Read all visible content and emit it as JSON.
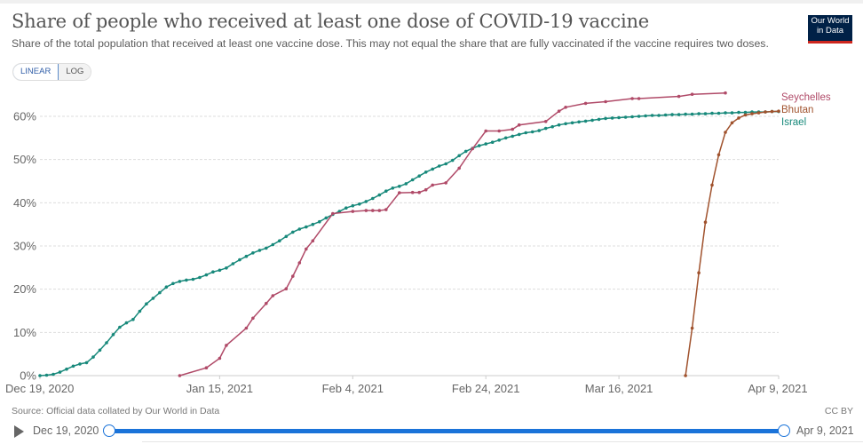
{
  "header": {
    "title": "Share of people who received at least one dose of COVID-19 vaccine",
    "subtitle": "Share of the total population that received at least one vaccine dose. This may not equal the share that are fully vaccinated if the vaccine requires two doses.",
    "logo_line1": "Our World",
    "logo_line2": "in Data"
  },
  "controls": {
    "linear_label": "LINEAR",
    "log_label": "LOG",
    "selected_scale": "LINEAR"
  },
  "footer": {
    "source": "Source: Official data collated by Our World in Data",
    "license": "CC BY"
  },
  "timeline": {
    "start_label": "Dec 19, 2020",
    "end_label": "Apr 9, 2021",
    "accent_color": "#1a73d9"
  },
  "chart_data": {
    "type": "line",
    "title": "Share of people who received at least one dose of COVID-19 vaccine",
    "xlabel": "",
    "ylabel": "",
    "x_unit": "days since Dec 19, 2020",
    "x_range": [
      0,
      111
    ],
    "x_ticks": [
      {
        "day": 0,
        "label": "Dec 19, 2020"
      },
      {
        "day": 27,
        "label": "Jan 15, 2021"
      },
      {
        "day": 47,
        "label": "Feb 4, 2021"
      },
      {
        "day": 67,
        "label": "Feb 24, 2021"
      },
      {
        "day": 87,
        "label": "Mar 16, 2021"
      },
      {
        "day": 111,
        "label": "Apr 9, 2021"
      }
    ],
    "ylim": [
      0,
      65
    ],
    "y_ticks": [
      {
        "value": 0,
        "label": "0%"
      },
      {
        "value": 10,
        "label": "10%"
      },
      {
        "value": 20,
        "label": "20%"
      },
      {
        "value": 30,
        "label": "30%"
      },
      {
        "value": 40,
        "label": "40%"
      },
      {
        "value": 50,
        "label": "50%"
      },
      {
        "value": 60,
        "label": "60%"
      }
    ],
    "grid": "horizontal-dashed",
    "legend": "right-inline",
    "series": [
      {
        "name": "Seychelles",
        "color": "#b04a68",
        "points": [
          [
            21,
            0.0
          ],
          [
            25,
            1.8
          ],
          [
            27,
            4.0
          ],
          [
            28,
            7.0
          ],
          [
            31,
            11.0
          ],
          [
            32,
            13.3
          ],
          [
            34,
            16.7
          ],
          [
            35,
            18.5
          ],
          [
            37,
            20.1
          ],
          [
            38,
            23.0
          ],
          [
            39,
            26.1
          ],
          [
            40,
            29.3
          ],
          [
            41,
            31.2
          ],
          [
            44,
            37.5
          ],
          [
            47,
            38.0
          ],
          [
            49,
            38.2
          ],
          [
            50,
            38.2
          ],
          [
            51,
            38.2
          ],
          [
            52,
            38.4
          ],
          [
            54,
            42.3
          ],
          [
            56,
            42.4
          ],
          [
            57,
            42.4
          ],
          [
            58,
            43.0
          ],
          [
            59,
            44.1
          ],
          [
            61,
            44.6
          ],
          [
            63,
            48.0
          ],
          [
            65,
            52.5
          ],
          [
            67,
            56.6
          ],
          [
            69,
            56.6
          ],
          [
            71,
            57.0
          ],
          [
            72,
            58.0
          ],
          [
            76,
            58.8
          ],
          [
            78,
            61.2
          ],
          [
            79,
            62.1
          ],
          [
            82,
            63.0
          ],
          [
            85,
            63.4
          ],
          [
            89,
            64.1
          ],
          [
            90,
            64.1
          ],
          [
            96,
            64.6
          ],
          [
            98,
            65.1
          ],
          [
            103,
            65.4
          ]
        ]
      },
      {
        "name": "Bhutan",
        "color": "#a0522d",
        "points": [
          [
            97,
            0.0
          ],
          [
            98,
            11.0
          ],
          [
            99,
            23.8
          ],
          [
            100,
            35.5
          ],
          [
            101,
            44.1
          ],
          [
            102,
            51.1
          ],
          [
            103,
            56.3
          ],
          [
            104,
            58.5
          ],
          [
            105,
            59.6
          ],
          [
            106,
            60.3
          ],
          [
            107,
            60.6
          ],
          [
            108,
            60.8
          ],
          [
            109,
            61.0
          ],
          [
            110,
            61.1
          ],
          [
            111,
            61.2
          ]
        ]
      },
      {
        "name": "Israel",
        "color": "#18897b",
        "points": [
          [
            0,
            0.0
          ],
          [
            1,
            0.1
          ],
          [
            2,
            0.3
          ],
          [
            3,
            0.8
          ],
          [
            4,
            1.5
          ],
          [
            5,
            2.2
          ],
          [
            6,
            2.7
          ],
          [
            7,
            3.0
          ],
          [
            8,
            4.3
          ],
          [
            9,
            5.9
          ],
          [
            10,
            7.6
          ],
          [
            11,
            9.5
          ],
          [
            12,
            11.2
          ],
          [
            13,
            12.2
          ],
          [
            14,
            13.0
          ],
          [
            15,
            14.9
          ],
          [
            16,
            16.6
          ],
          [
            17,
            17.9
          ],
          [
            18,
            19.2
          ],
          [
            19,
            20.5
          ],
          [
            20,
            21.3
          ],
          [
            21,
            21.8
          ],
          [
            22,
            22.1
          ],
          [
            23,
            22.3
          ],
          [
            24,
            22.7
          ],
          [
            25,
            23.3
          ],
          [
            26,
            24.0
          ],
          [
            27,
            24.4
          ],
          [
            28,
            24.9
          ],
          [
            29,
            25.9
          ],
          [
            30,
            26.8
          ],
          [
            31,
            27.6
          ],
          [
            32,
            28.4
          ],
          [
            33,
            29.0
          ],
          [
            34,
            29.5
          ],
          [
            35,
            30.3
          ],
          [
            36,
            31.2
          ],
          [
            37,
            32.2
          ],
          [
            38,
            33.2
          ],
          [
            39,
            33.9
          ],
          [
            40,
            34.4
          ],
          [
            41,
            35.0
          ],
          [
            42,
            35.6
          ],
          [
            43,
            36.5
          ],
          [
            44,
            37.3
          ],
          [
            45,
            38.0
          ],
          [
            46,
            38.8
          ],
          [
            47,
            39.3
          ],
          [
            48,
            39.7
          ],
          [
            49,
            40.3
          ],
          [
            50,
            41.0
          ],
          [
            51,
            41.8
          ],
          [
            52,
            42.7
          ],
          [
            53,
            43.4
          ],
          [
            54,
            43.8
          ],
          [
            55,
            44.4
          ],
          [
            56,
            45.3
          ],
          [
            57,
            46.2
          ],
          [
            58,
            47.1
          ],
          [
            59,
            47.8
          ],
          [
            60,
            48.5
          ],
          [
            61,
            49.0
          ],
          [
            62,
            49.8
          ],
          [
            63,
            50.9
          ],
          [
            64,
            51.9
          ],
          [
            65,
            52.6
          ],
          [
            66,
            53.2
          ],
          [
            67,
            53.6
          ],
          [
            68,
            54.0
          ],
          [
            69,
            54.5
          ],
          [
            70,
            55.0
          ],
          [
            71,
            55.4
          ],
          [
            72,
            55.8
          ],
          [
            73,
            56.2
          ],
          [
            74,
            56.4
          ],
          [
            75,
            56.7
          ],
          [
            76,
            57.2
          ],
          [
            77,
            57.6
          ],
          [
            78,
            58.0
          ],
          [
            79,
            58.3
          ],
          [
            80,
            58.5
          ],
          [
            81,
            58.7
          ],
          [
            82,
            58.9
          ],
          [
            83,
            59.1
          ],
          [
            84,
            59.3
          ],
          [
            85,
            59.5
          ],
          [
            86,
            59.6
          ],
          [
            87,
            59.7
          ],
          [
            88,
            59.8
          ],
          [
            89,
            59.9
          ],
          [
            90,
            60.0
          ],
          [
            91,
            60.1
          ],
          [
            92,
            60.2
          ],
          [
            93,
            60.2
          ],
          [
            94,
            60.3
          ],
          [
            95,
            60.4
          ],
          [
            96,
            60.4
          ],
          [
            97,
            60.5
          ],
          [
            98,
            60.5
          ],
          [
            99,
            60.6
          ],
          [
            100,
            60.6
          ],
          [
            101,
            60.7
          ],
          [
            102,
            60.7
          ],
          [
            103,
            60.8
          ],
          [
            104,
            60.8
          ],
          [
            105,
            60.9
          ],
          [
            106,
            60.9
          ],
          [
            107,
            61.0
          ],
          [
            108,
            61.0
          ],
          [
            109,
            61.0
          ],
          [
            110,
            61.1
          ],
          [
            111,
            61.1
          ]
        ]
      }
    ]
  }
}
